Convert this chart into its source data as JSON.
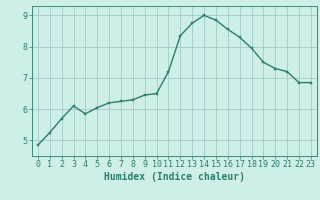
{
  "x": [
    0,
    1,
    2,
    3,
    4,
    5,
    6,
    7,
    8,
    9,
    10,
    11,
    12,
    13,
    14,
    15,
    16,
    17,
    18,
    19,
    20,
    21,
    22,
    23
  ],
  "y": [
    4.85,
    5.25,
    5.7,
    6.1,
    5.85,
    6.05,
    6.2,
    6.25,
    6.3,
    6.45,
    6.5,
    7.2,
    8.35,
    8.75,
    9.0,
    8.85,
    8.55,
    8.3,
    7.95,
    7.5,
    7.3,
    7.2,
    6.85,
    6.85
  ],
  "xlabel": "Humidex (Indice chaleur)",
  "ylim": [
    4.5,
    9.3
  ],
  "xlim": [
    -0.5,
    23.5
  ],
  "yticks": [
    5,
    6,
    7,
    8,
    9
  ],
  "xticks": [
    0,
    1,
    2,
    3,
    4,
    5,
    6,
    7,
    8,
    9,
    10,
    11,
    12,
    13,
    14,
    15,
    16,
    17,
    18,
    19,
    20,
    21,
    22,
    23
  ],
  "line_color": "#2e7d6e",
  "marker_color": "#2e7d6e",
  "bg_color": "#ceeee8",
  "grid_color": "#a0cccc",
  "axis_color": "#3a8a7a",
  "tick_color": "#2e7d6e",
  "label_color": "#2e7d6e",
  "tick_fontsize": 6,
  "xlabel_fontsize": 7
}
